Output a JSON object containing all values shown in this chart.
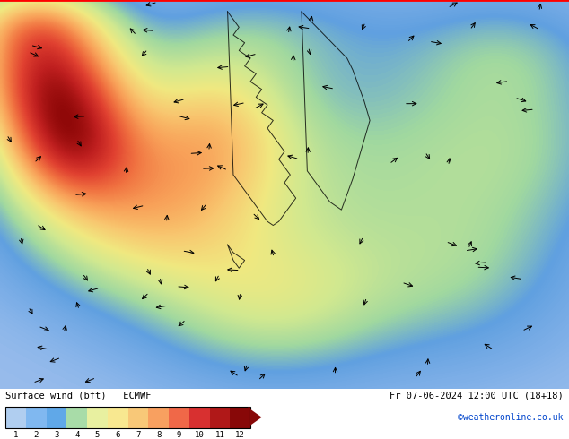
{
  "title_left": "Surface wind (bft)   ECMWF",
  "title_right": "Fr 07-06-2024 12:00 UTC (18+18)",
  "credit": "©weatheronline.co.uk",
  "colorbar_values": [
    "1",
    "2",
    "3",
    "4",
    "5",
    "6",
    "7",
    "8",
    "9",
    "10",
    "11",
    "12"
  ],
  "colorbar_colors": [
    "#b0cef0",
    "#80b8f0",
    "#60a8e8",
    "#a8dca8",
    "#e8f0a0",
    "#f8e890",
    "#f8c878",
    "#f8a060",
    "#f06848",
    "#d83030",
    "#b01818",
    "#880808"
  ],
  "map_colors": [
    "#b0c8f0",
    "#80b0e8",
    "#60a0e0",
    "#a0d8a0",
    "#d0e890",
    "#f0e880",
    "#f8c870",
    "#f8a058",
    "#f07040",
    "#e04030",
    "#c02020",
    "#900808"
  ],
  "fig_width": 6.34,
  "fig_height": 4.9,
  "top_border_color": "#ff0000",
  "bottom_bg": "#ffffff"
}
